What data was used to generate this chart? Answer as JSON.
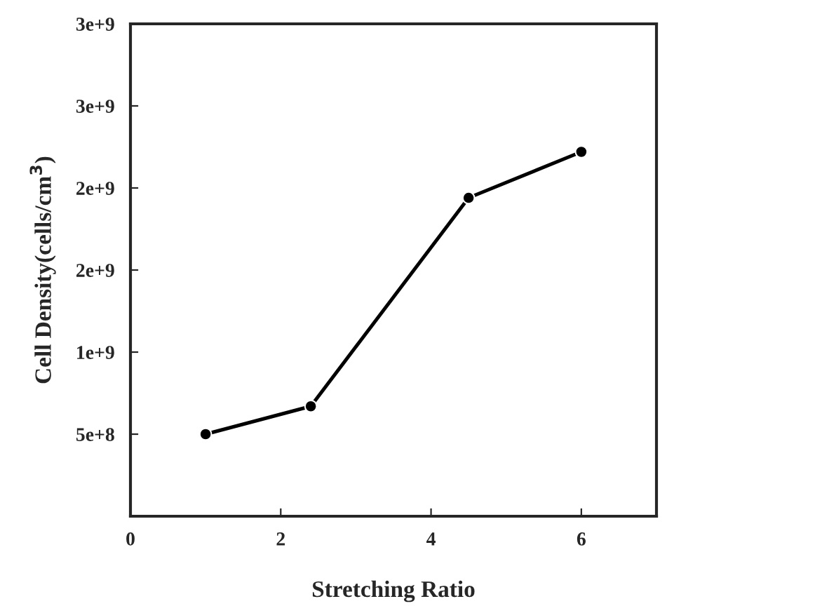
{
  "chart_data": {
    "type": "line",
    "xlabel": "Stretching Ratio",
    "ylabel": "Cell Density(cells/cm$^{3}$)",
    "x": [
      1,
      2.4,
      4.5,
      6
    ],
    "series": [
      {
        "color": "#000000",
        "values": [
          500000000.0,
          670000000.0,
          1940000000.0,
          2220000000.0
        ]
      }
    ],
    "marker": "circle",
    "line_style": "solid",
    "xlim": [
      0,
      7
    ],
    "xticks": [
      0,
      2,
      4,
      6
    ],
    "ylim": [
      0,
      3000000000.0
    ],
    "yticks": [
      {
        "value": 500000000.0,
        "label": "5e+8"
      },
      {
        "value": 1000000000.0,
        "label": "1e+9"
      },
      {
        "value": 1500000000.0,
        "label": "2e+9"
      },
      {
        "value": 2000000000.0,
        "label": "2e+9"
      },
      {
        "value": 2500000000.0,
        "label": "3e+9"
      },
      {
        "value": 3000000000.0,
        "label": "3e+9"
      }
    ]
  }
}
